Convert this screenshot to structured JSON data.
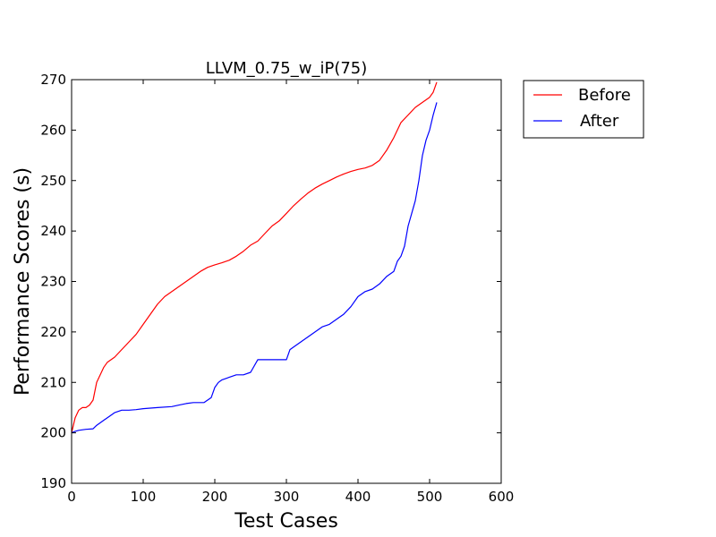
{
  "chart_data": {
    "type": "line",
    "title": "LLVM_0.75_w_iP(75)",
    "xlabel": "Test Cases",
    "ylabel": "Performance Scores (s)",
    "xlim": [
      0,
      600
    ],
    "ylim": [
      190,
      270
    ],
    "xticks": [
      "0",
      "100",
      "200",
      "300",
      "400",
      "500",
      "600"
    ],
    "yticks": [
      "190",
      "200",
      "210",
      "220",
      "230",
      "240",
      "250",
      "260",
      "270"
    ],
    "grid": false,
    "legend_position": "outside-top-right",
    "series": [
      {
        "name": "Before",
        "color": "#ff0000",
        "x": [
          0,
          5,
          10,
          15,
          20,
          25,
          30,
          35,
          40,
          45,
          50,
          60,
          70,
          80,
          90,
          100,
          110,
          120,
          130,
          140,
          150,
          160,
          170,
          180,
          190,
          200,
          210,
          220,
          230,
          240,
          250,
          260,
          270,
          280,
          290,
          300,
          310,
          320,
          330,
          340,
          350,
          360,
          370,
          380,
          390,
          400,
          410,
          420,
          430,
          440,
          450,
          460,
          470,
          480,
          490,
          500,
          505,
          510
        ],
        "y": [
          200,
          203,
          204.5,
          205,
          205,
          205.5,
          206.5,
          210,
          211.5,
          213,
          214,
          215,
          216.5,
          218,
          219.5,
          221.5,
          223.5,
          225.5,
          227,
          228,
          229,
          230,
          231,
          232,
          232.8,
          233.3,
          233.7,
          234.2,
          235,
          236,
          237.2,
          238,
          239.5,
          241,
          242,
          243.5,
          245,
          246.3,
          247.5,
          248.5,
          249.3,
          250,
          250.7,
          251.3,
          251.8,
          252.2,
          252.5,
          253,
          254,
          256,
          258.5,
          261.5,
          263,
          264.5,
          265.5,
          266.5,
          267.5,
          269.5
        ]
      },
      {
        "name": "After",
        "color": "#0000ff",
        "x": [
          0,
          5,
          10,
          20,
          30,
          35,
          40,
          45,
          50,
          60,
          70,
          80,
          90,
          100,
          120,
          140,
          150,
          160,
          170,
          180,
          185,
          195,
          200,
          205,
          210,
          220,
          230,
          240,
          250,
          260,
          270,
          280,
          290,
          300,
          305,
          310,
          320,
          330,
          340,
          350,
          360,
          370,
          380,
          390,
          400,
          410,
          420,
          430,
          440,
          450,
          455,
          460,
          465,
          470,
          475,
          480,
          485,
          490,
          495,
          500,
          505,
          510
        ],
        "y": [
          200,
          200.3,
          200.5,
          200.7,
          200.8,
          201.5,
          202,
          202.5,
          203,
          204,
          204.5,
          204.5,
          204.6,
          204.8,
          205,
          205.2,
          205.5,
          205.8,
          206,
          206,
          206,
          207,
          209,
          210,
          210.5,
          211,
          211.5,
          211.5,
          212,
          214.5,
          214.5,
          214.5,
          214.5,
          214.5,
          216.5,
          217,
          218,
          219,
          220,
          221,
          221.5,
          222.5,
          223.5,
          225,
          227,
          228,
          228.5,
          229.5,
          231,
          232,
          234,
          235,
          237,
          241,
          243.5,
          246,
          250,
          255,
          258,
          260,
          263,
          265.5
        ]
      }
    ]
  }
}
